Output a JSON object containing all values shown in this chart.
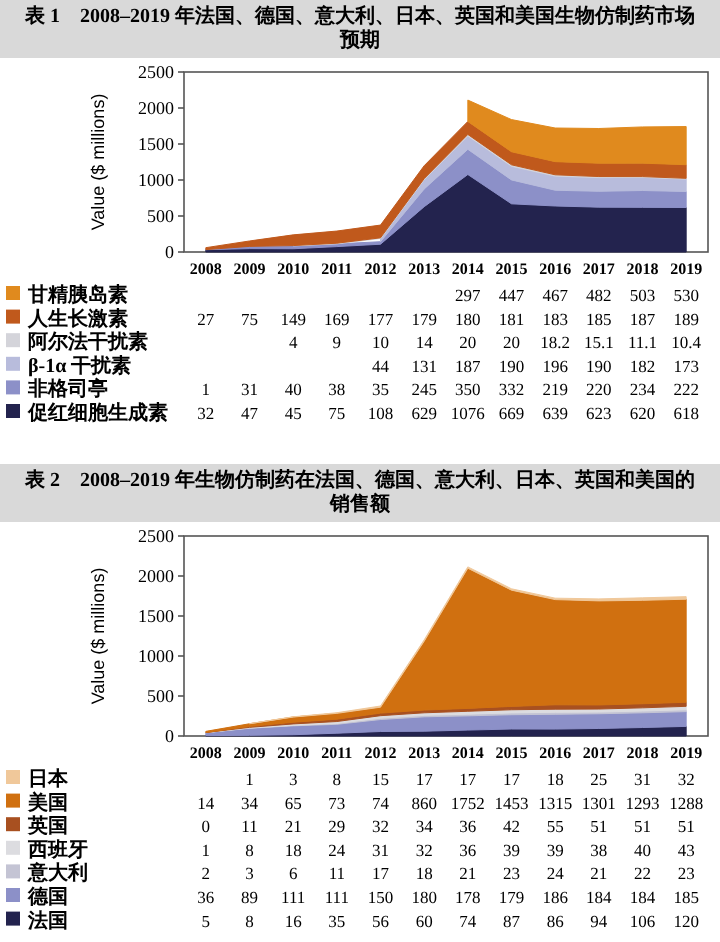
{
  "chart_data": [
    {
      "type": "area",
      "stacked": true,
      "title": "表 1　2008–2019 年法国、德国、意大利、日本、英国和美国生物仿制药市场预期",
      "ylabel": "Value ($ millions)",
      "ylim": [
        0,
        2500
      ],
      "yticks": [
        0,
        500,
        1000,
        1500,
        2000,
        2500
      ],
      "data_labels": true,
      "legend": "bottom",
      "categories": [
        "2008",
        "2009",
        "2010",
        "2011",
        "2012",
        "2013",
        "2014",
        "2015",
        "2016",
        "2017",
        "2018",
        "2019"
      ],
      "series": [
        {
          "name": "促红细胞生成素",
          "color": "#23234e",
          "values": [
            32,
            47,
            45,
            75,
            108,
            629,
            1076,
            669,
            639,
            623,
            620,
            618
          ]
        },
        {
          "name": "非格司亭",
          "color": "#8c90c8",
          "values": [
            1,
            31,
            40,
            38,
            35,
            245,
            350,
            332,
            219,
            220,
            234,
            222
          ]
        },
        {
          "name": "β-1α 干扰素",
          "color": "#b8bcdc",
          "values": [
            null,
            null,
            null,
            null,
            44,
            131,
            187,
            190,
            196,
            190,
            182,
            173
          ]
        },
        {
          "name": "阿尔法干扰素",
          "color": "#d4d4da",
          "values": [
            null,
            null,
            4,
            9,
            10,
            14,
            20,
            20,
            18.2,
            15.1,
            11.1,
            10.4
          ]
        },
        {
          "name": "人生长激素",
          "color": "#c0591c",
          "values": [
            27,
            75,
            149,
            169,
            177,
            179,
            180,
            181,
            183,
            185,
            187,
            189
          ]
        },
        {
          "name": "甘精胰岛素",
          "color": "#e08a1e",
          "values": [
            null,
            null,
            null,
            null,
            null,
            null,
            297,
            447,
            467,
            482,
            503,
            530
          ]
        }
      ]
    },
    {
      "type": "area",
      "stacked": true,
      "title": "表 2　2008–2019 年生物仿制药在法国、德国、意大利、日本、英国和美国的销售额",
      "ylabel": "Value ($ millions)",
      "ylim": [
        0,
        2500
      ],
      "yticks": [
        0,
        500,
        1000,
        1500,
        2000,
        2500
      ],
      "data_labels": true,
      "legend": "bottom",
      "categories": [
        "2008",
        "2009",
        "2010",
        "2011",
        "2012",
        "2013",
        "2014",
        "2015",
        "2016",
        "2017",
        "2018",
        "2019"
      ],
      "series": [
        {
          "name": "法国",
          "color": "#23234e",
          "values": [
            5,
            8,
            16,
            35,
            56,
            60,
            74,
            87,
            86,
            94,
            106,
            120
          ]
        },
        {
          "name": "德国",
          "color": "#8c90c8",
          "values": [
            36,
            89,
            111,
            111,
            150,
            180,
            178,
            179,
            186,
            184,
            184,
            185
          ]
        },
        {
          "name": "意大利",
          "color": "#c4c4d4",
          "values": [
            2,
            3,
            6,
            11,
            17,
            18,
            21,
            23,
            24,
            21,
            22,
            23
          ]
        },
        {
          "name": "西班牙",
          "color": "#dcdce0",
          "values": [
            1,
            8,
            18,
            24,
            31,
            32,
            36,
            39,
            39,
            38,
            40,
            43
          ]
        },
        {
          "name": "英国",
          "color": "#a85020",
          "values": [
            0,
            11,
            21,
            29,
            32,
            34,
            36,
            42,
            55,
            51,
            51,
            51
          ]
        },
        {
          "name": "美国",
          "color": "#d07010",
          "values": [
            14,
            34,
            65,
            73,
            74,
            860,
            1752,
            1453,
            1315,
            1301,
            1293,
            1288
          ]
        },
        {
          "name": "日本",
          "color": "#f0c89a",
          "values": [
            null,
            1,
            3,
            8,
            15,
            17,
            17,
            17,
            18,
            25,
            31,
            32
          ]
        }
      ]
    }
  ]
}
